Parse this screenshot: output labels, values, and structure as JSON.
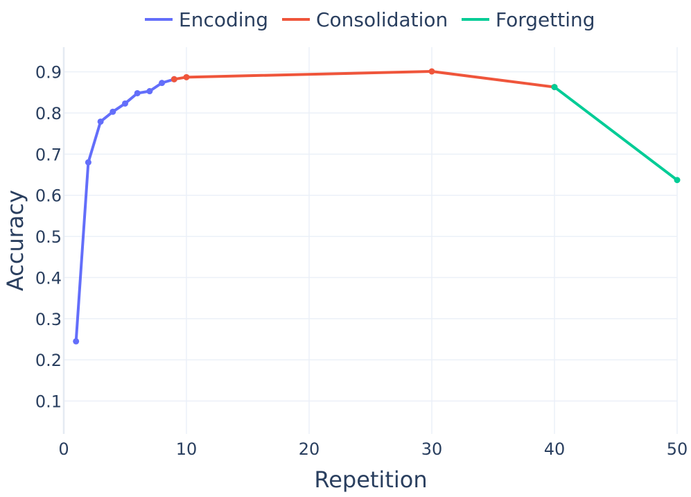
{
  "chart_data": {
    "type": "line",
    "xlabel": "Repetition",
    "ylabel": "Accuracy",
    "xlim": [
      0,
      50
    ],
    "ylim": [
      0.02,
      0.96
    ],
    "xticks": [
      0,
      10,
      20,
      30,
      40,
      50
    ],
    "xtick_labels": [
      "0",
      "10",
      "20",
      "30",
      "40",
      "50"
    ],
    "yticks": [
      0.1,
      0.2,
      0.3,
      0.4,
      0.5,
      0.6,
      0.7,
      0.8,
      0.9
    ],
    "ytick_labels": [
      "0.1",
      "0.2",
      "0.3",
      "0.4",
      "0.5",
      "0.6",
      "0.7",
      "0.8",
      "0.9"
    ],
    "grid": true,
    "legend_position": "top-center",
    "series": [
      {
        "name": "Encoding",
        "color": "#636efa",
        "x": [
          1,
          2,
          3,
          4,
          5,
          6,
          7,
          8,
          9
        ],
        "y": [
          0.245,
          0.68,
          0.779,
          0.803,
          0.823,
          0.848,
          0.853,
          0.873,
          0.882
        ]
      },
      {
        "name": "Consolidation",
        "color": "#ef553b",
        "x": [
          9,
          10,
          30,
          40
        ],
        "y": [
          0.882,
          0.887,
          0.901,
          0.863
        ]
      },
      {
        "name": "Forgetting",
        "color": "#00cc96",
        "x": [
          40,
          50
        ],
        "y": [
          0.863,
          0.637
        ]
      }
    ]
  }
}
